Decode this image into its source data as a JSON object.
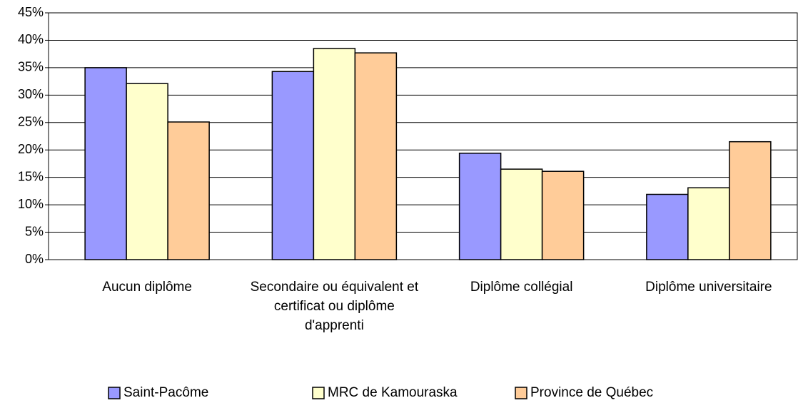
{
  "chart_data": {
    "type": "bar",
    "categories": [
      "Aucun diplôme",
      "Secondaire ou équivalent et certificat ou diplôme d'apprenti",
      "Diplôme collégial",
      "Diplôme universitaire"
    ],
    "series": [
      {
        "name": "Saint-Pacôme",
        "color": "#9999ff",
        "values": [
          35.0,
          34.3,
          19.4,
          11.9
        ]
      },
      {
        "name": "MRC de Kamouraska",
        "color": "#ffffcc",
        "values": [
          32.1,
          38.5,
          16.5,
          13.1
        ]
      },
      {
        "name": "Province de Québec",
        "color": "#ffcc99",
        "values": [
          25.1,
          37.7,
          16.1,
          21.5
        ]
      }
    ],
    "ylim": [
      0,
      45
    ],
    "yticks": [
      {
        "value": 0,
        "label": "0%"
      },
      {
        "value": 5,
        "label": "5%"
      },
      {
        "value": 10,
        "label": "10%"
      },
      {
        "value": 15,
        "label": "15%"
      },
      {
        "value": 20,
        "label": "20%"
      },
      {
        "value": 25,
        "label": "25%"
      },
      {
        "value": 30,
        "label": "30%"
      },
      {
        "value": 35,
        "label": "35%"
      },
      {
        "value": 40,
        "label": "40%"
      },
      {
        "value": 45,
        "label": "45%"
      }
    ],
    "grid": true,
    "legend": "bottom"
  }
}
